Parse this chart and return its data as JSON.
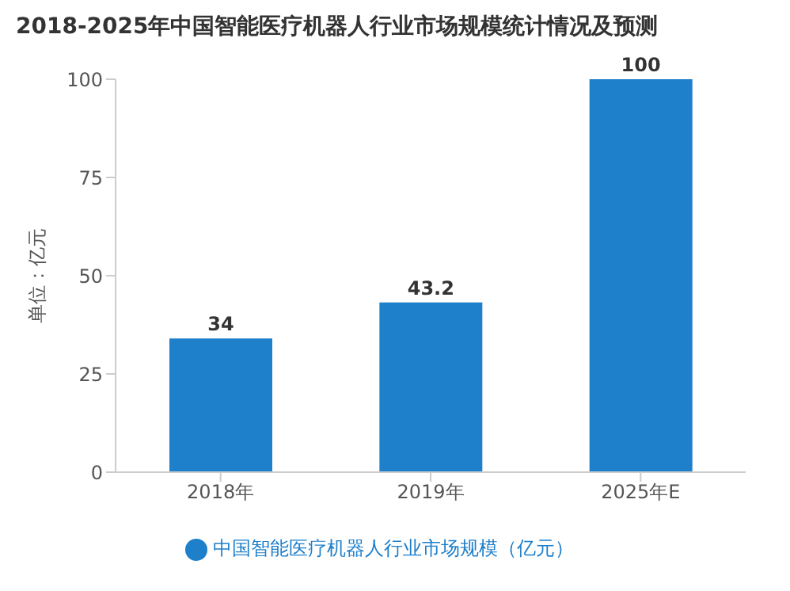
{
  "chart_data": {
    "type": "bar",
    "title": "2018-2025年中国智能医疗机器人行业市场规模统计情况及预测",
    "ylabel": "单位：亿元",
    "categories": [
      "2018年",
      "2019年",
      "2025年E"
    ],
    "series": [
      {
        "name": "中国智能医疗机器人行业市场规模（亿元）",
        "color": "#1e7fcb",
        "values": [
          34,
          43.2,
          100
        ]
      }
    ],
    "ylim": [
      0,
      100
    ],
    "yticks": [
      0,
      25,
      50,
      75,
      100
    ],
    "data_labels": true,
    "legend": "bottom",
    "grid": false
  }
}
